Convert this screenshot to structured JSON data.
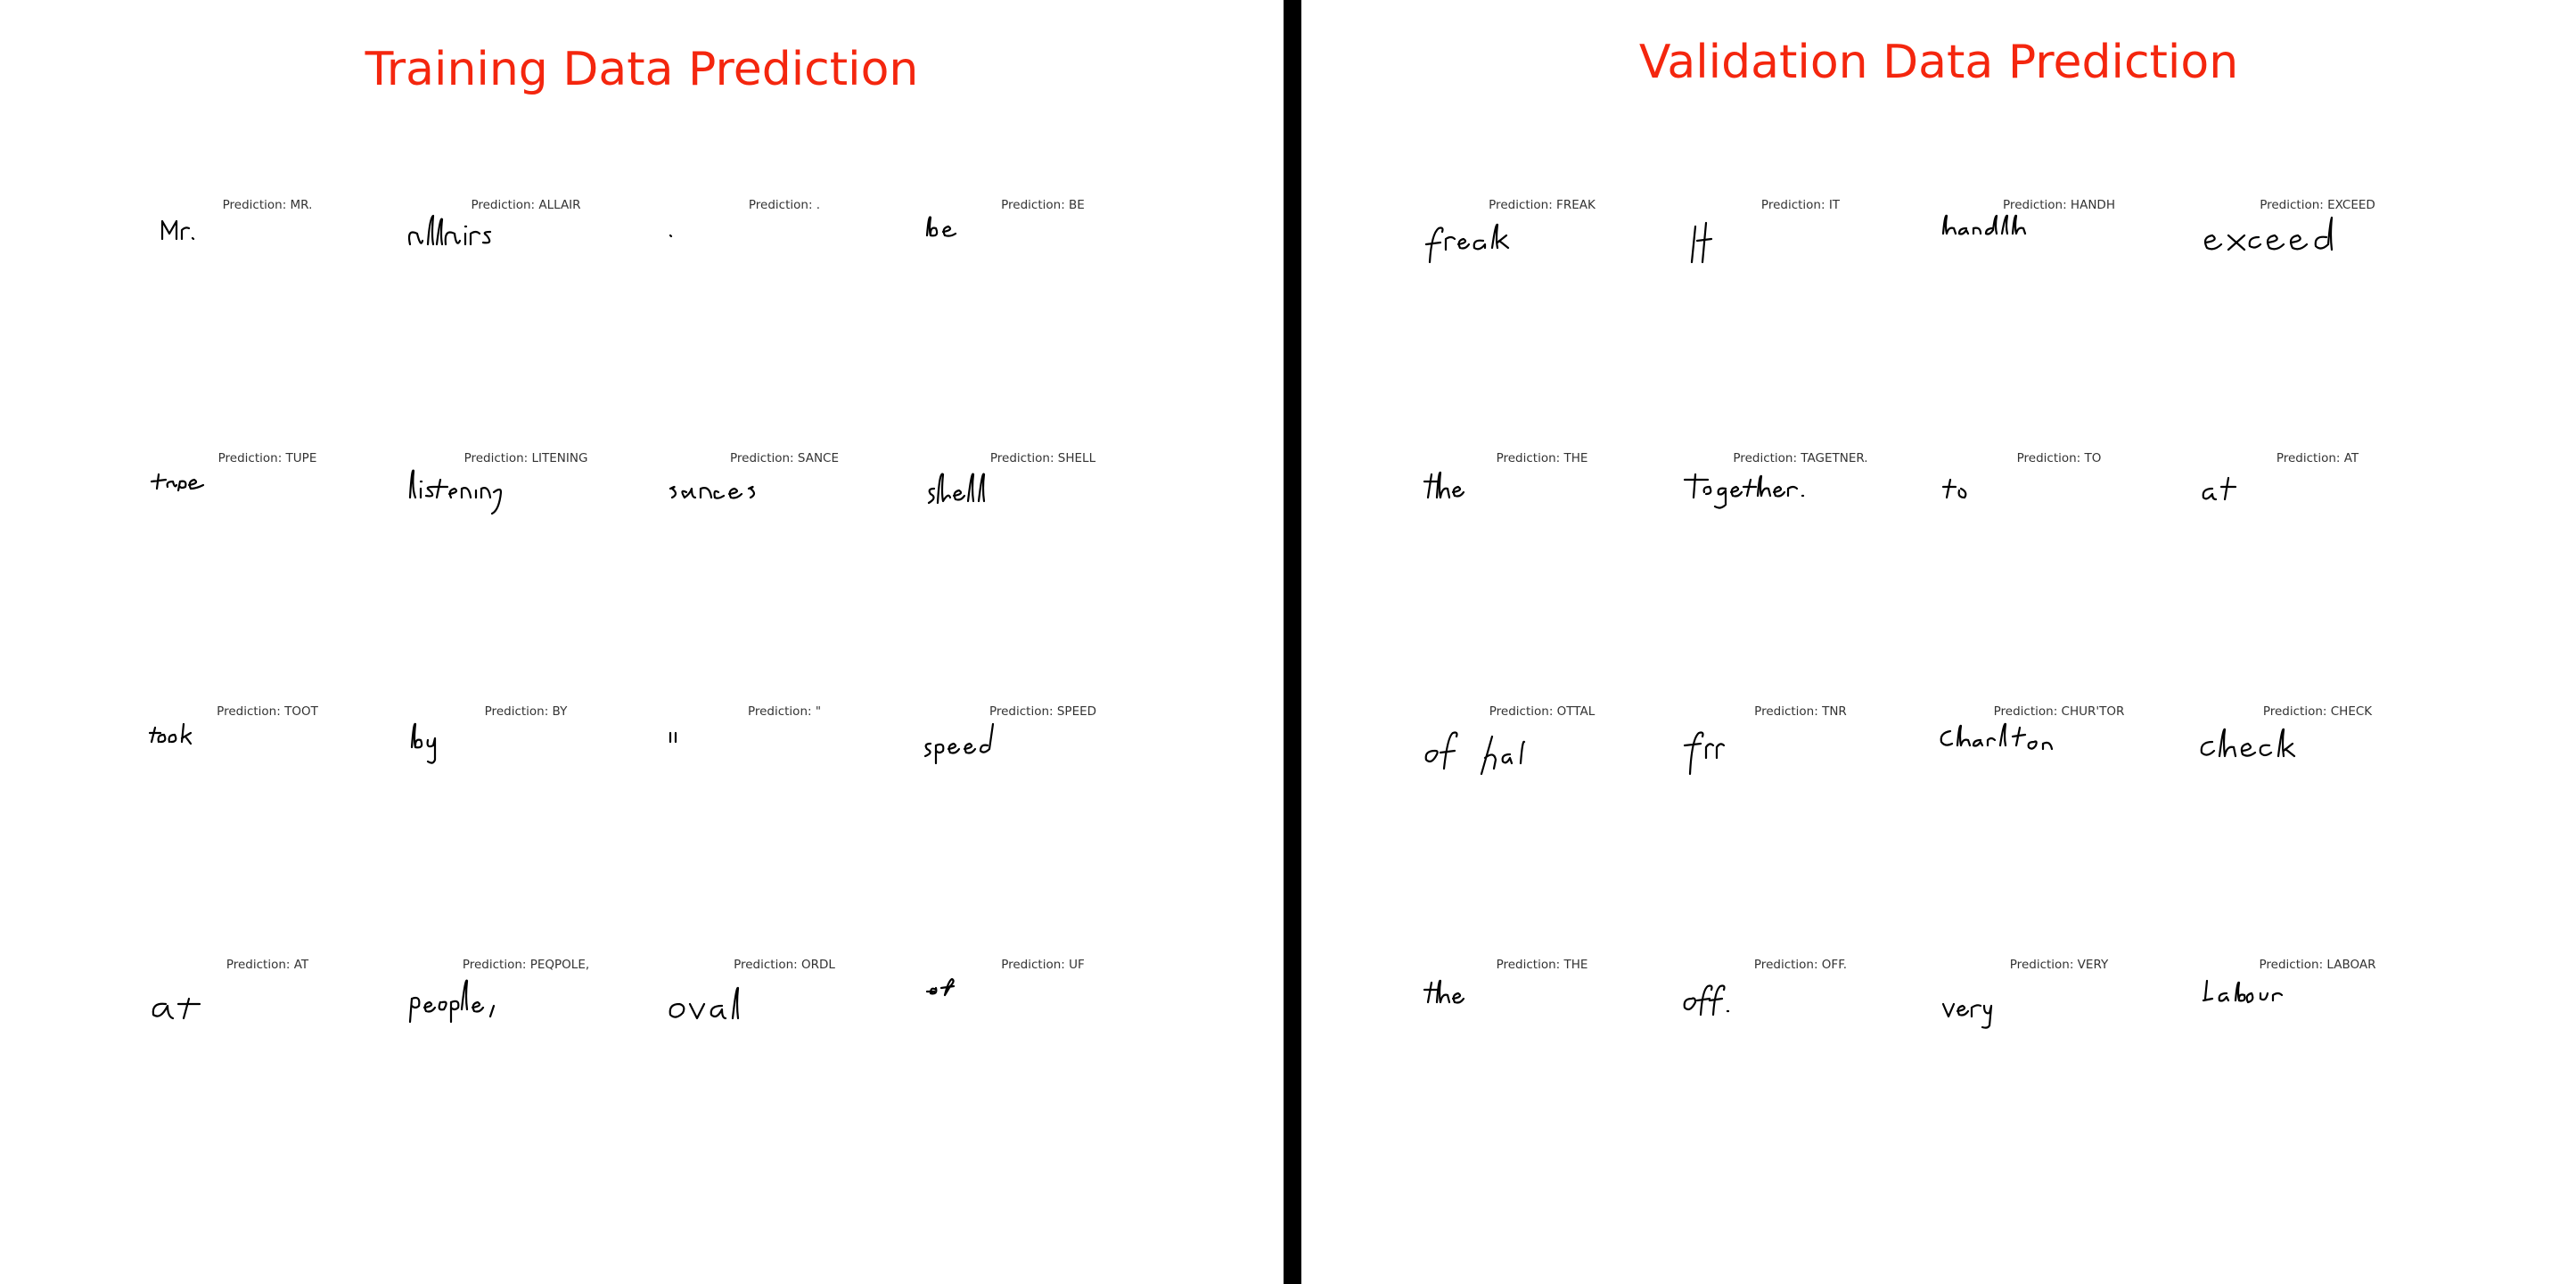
{
  "left": {
    "title": "Training Data Prediction",
    "cells": [
      {
        "prediction": "Prediction: MR.",
        "image": "Mr."
      },
      {
        "prediction": "Prediction: ALLAIR",
        "image": "allairs"
      },
      {
        "prediction": "Prediction: .",
        "image": "."
      },
      {
        "prediction": "Prediction: BE",
        "image": "be"
      },
      {
        "prediction": "Prediction: TUPE",
        "image": "tape"
      },
      {
        "prediction": "Prediction: LITENING",
        "image": "listening"
      },
      {
        "prediction": "Prediction: SANCE",
        "image": "sances"
      },
      {
        "prediction": "Prediction: SHELL",
        "image": "shell"
      },
      {
        "prediction": "Prediction: TOOT",
        "image": "took"
      },
      {
        "prediction": "Prediction: BY",
        "image": "by"
      },
      {
        "prediction": "Prediction: \"",
        "image": "\""
      },
      {
        "prediction": "Prediction: SPEED",
        "image": "speed"
      },
      {
        "prediction": "Prediction: AT",
        "image": "at"
      },
      {
        "prediction": "Prediction: PEQPOLE,",
        "image": "people,"
      },
      {
        "prediction": "Prediction: ORDL",
        "image": "oval"
      },
      {
        "prediction": "Prediction: UF",
        "image": "of"
      }
    ]
  },
  "right": {
    "title": "Validation Data Prediction",
    "cells": [
      {
        "prediction": "Prediction: FREAK",
        "image": "freak"
      },
      {
        "prediction": "Prediction: IT",
        "image": "It"
      },
      {
        "prediction": "Prediction: HANDH",
        "image": "handh"
      },
      {
        "prediction": "Prediction: EXCEED",
        "image": "exceed"
      },
      {
        "prediction": "Prediction: THE",
        "image": "the"
      },
      {
        "prediction": "Prediction: TAGETNER.",
        "image": "together."
      },
      {
        "prediction": "Prediction: TO",
        "image": "to"
      },
      {
        "prediction": "Prediction: AT",
        "image": "at"
      },
      {
        "prediction": "Prediction: OTTAL",
        "image": "of hal"
      },
      {
        "prediction": "Prediction: TNR",
        "image": "for"
      },
      {
        "prediction": "Prediction: CHUR'TOR",
        "image": "Charlton"
      },
      {
        "prediction": "Prediction: CHECK",
        "image": "check"
      },
      {
        "prediction": "Prediction: THE",
        "image": "the"
      },
      {
        "prediction": "Prediction: OFF.",
        "image": "off."
      },
      {
        "prediction": "Prediction: VERY",
        "image": "very"
      },
      {
        "prediction": "Prediction: LABOAR",
        "image": "Labour"
      }
    ]
  }
}
